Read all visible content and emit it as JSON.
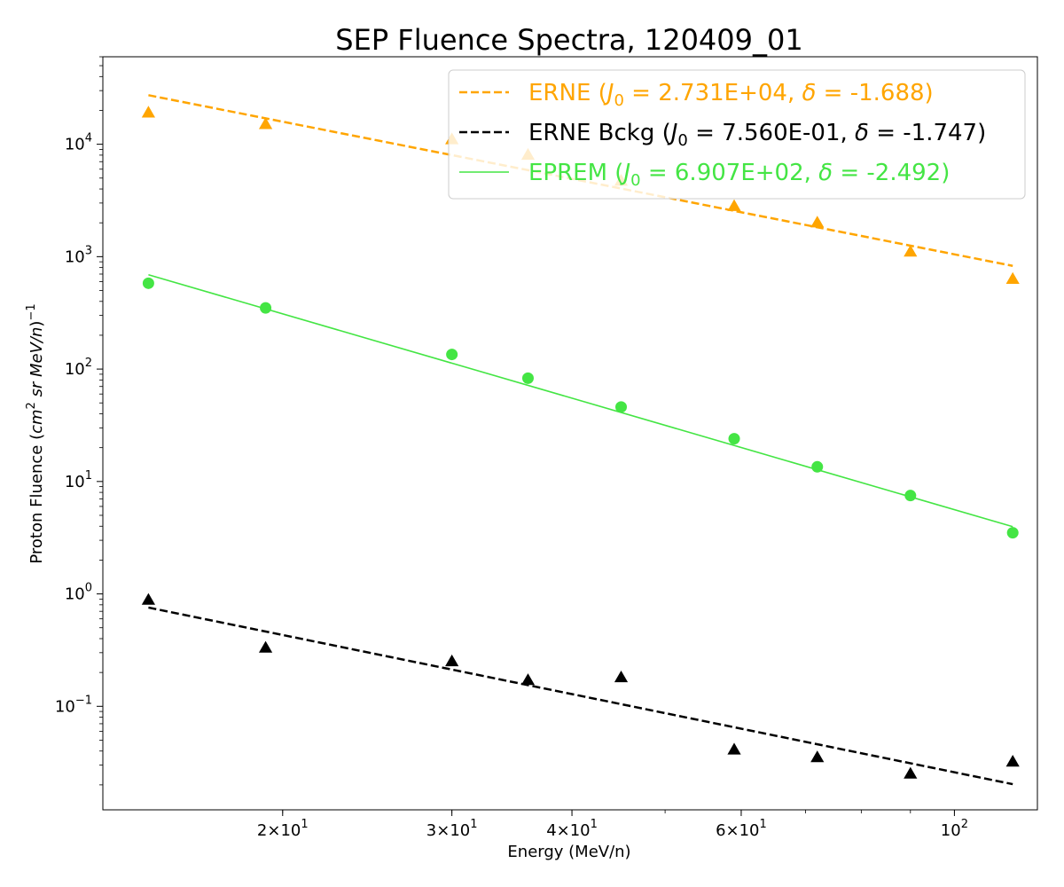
{
  "chart_data": {
    "type": "scatter",
    "title": "SEP Fluence Spectra, 120409_01",
    "xlabel": "Energy (MeV/n)",
    "ylabel_parts": [
      "Proton Fluence (",
      "cm",
      "2",
      " sr MeV/n",
      ")",
      "−1"
    ],
    "xscale": "log",
    "yscale": "log",
    "xlim": [
      13.0,
      122.0
    ],
    "ylim": [
      0.012,
      60000
    ],
    "legend_position": "top-right",
    "x_ticks": [
      {
        "value": 20,
        "mant": "2",
        "exp": "1"
      },
      {
        "value": 30,
        "mant": "3",
        "exp": "1"
      },
      {
        "value": 40,
        "mant": "4",
        "exp": "1"
      },
      {
        "value": 60,
        "mant": "6",
        "exp": "1"
      },
      {
        "value": 100,
        "mant": "",
        "exp": "2"
      }
    ],
    "y_ticks": [
      {
        "value": 0.1,
        "exp": "−1"
      },
      {
        "value": 1,
        "exp": "0"
      },
      {
        "value": 10,
        "exp": "1"
      },
      {
        "value": 100,
        "exp": "2"
      },
      {
        "value": 1000,
        "exp": "3"
      },
      {
        "value": 10000,
        "exp": "4"
      }
    ],
    "series": [
      {
        "id": "erne",
        "marker": "triangle",
        "color": "#ffa500",
        "x": [
          14.5,
          19.2,
          30.0,
          36.0,
          45.0,
          59.0,
          72.0,
          90.0,
          115.0
        ],
        "y": [
          19000,
          15000,
          11000,
          8000,
          4700,
          2800,
          2000,
          1100,
          630
        ],
        "fit": {
          "j0": 27310,
          "delta": -1.688,
          "e0": 14.5,
          "style": "dashed"
        }
      },
      {
        "id": "erne_bckg",
        "marker": "triangle",
        "color": "#000000",
        "x": [
          14.5,
          19.2,
          30.0,
          36.0,
          45.0,
          59.0,
          72.0,
          90.0,
          115.0
        ],
        "y": [
          0.88,
          0.33,
          0.25,
          0.17,
          0.18,
          0.041,
          0.035,
          0.025,
          0.032
        ],
        "fit": {
          "j0": 0.756,
          "delta": -1.747,
          "e0": 14.5,
          "style": "dashed"
        }
      },
      {
        "id": "eprem",
        "marker": "circle",
        "color": "#44e544",
        "x": [
          14.5,
          19.2,
          30.0,
          36.0,
          45.0,
          59.0,
          72.0,
          90.0,
          115.0
        ],
        "y": [
          580,
          350,
          135,
          83,
          46,
          24,
          13.5,
          7.5,
          3.5
        ],
        "fit": {
          "j0": 690.7,
          "delta": -2.492,
          "e0": 14.5,
          "style": "solid"
        }
      }
    ],
    "legend": [
      {
        "series_id": "erne",
        "name": "ERNE",
        "j0_text": "2.731E+04",
        "delta_text": "-1.688",
        "color": "#ffa500",
        "style": "dashed"
      },
      {
        "series_id": "erne_bckg",
        "name": "ERNE Bckg",
        "j0_text": "7.560E-01",
        "delta_text": "-1.747",
        "color": "#000000",
        "style": "dashed"
      },
      {
        "series_id": "eprem",
        "name": "EPREM",
        "j0_text": "6.907E+02",
        "delta_text": "-2.492",
        "color": "#44e544",
        "style": "solid"
      }
    ]
  }
}
